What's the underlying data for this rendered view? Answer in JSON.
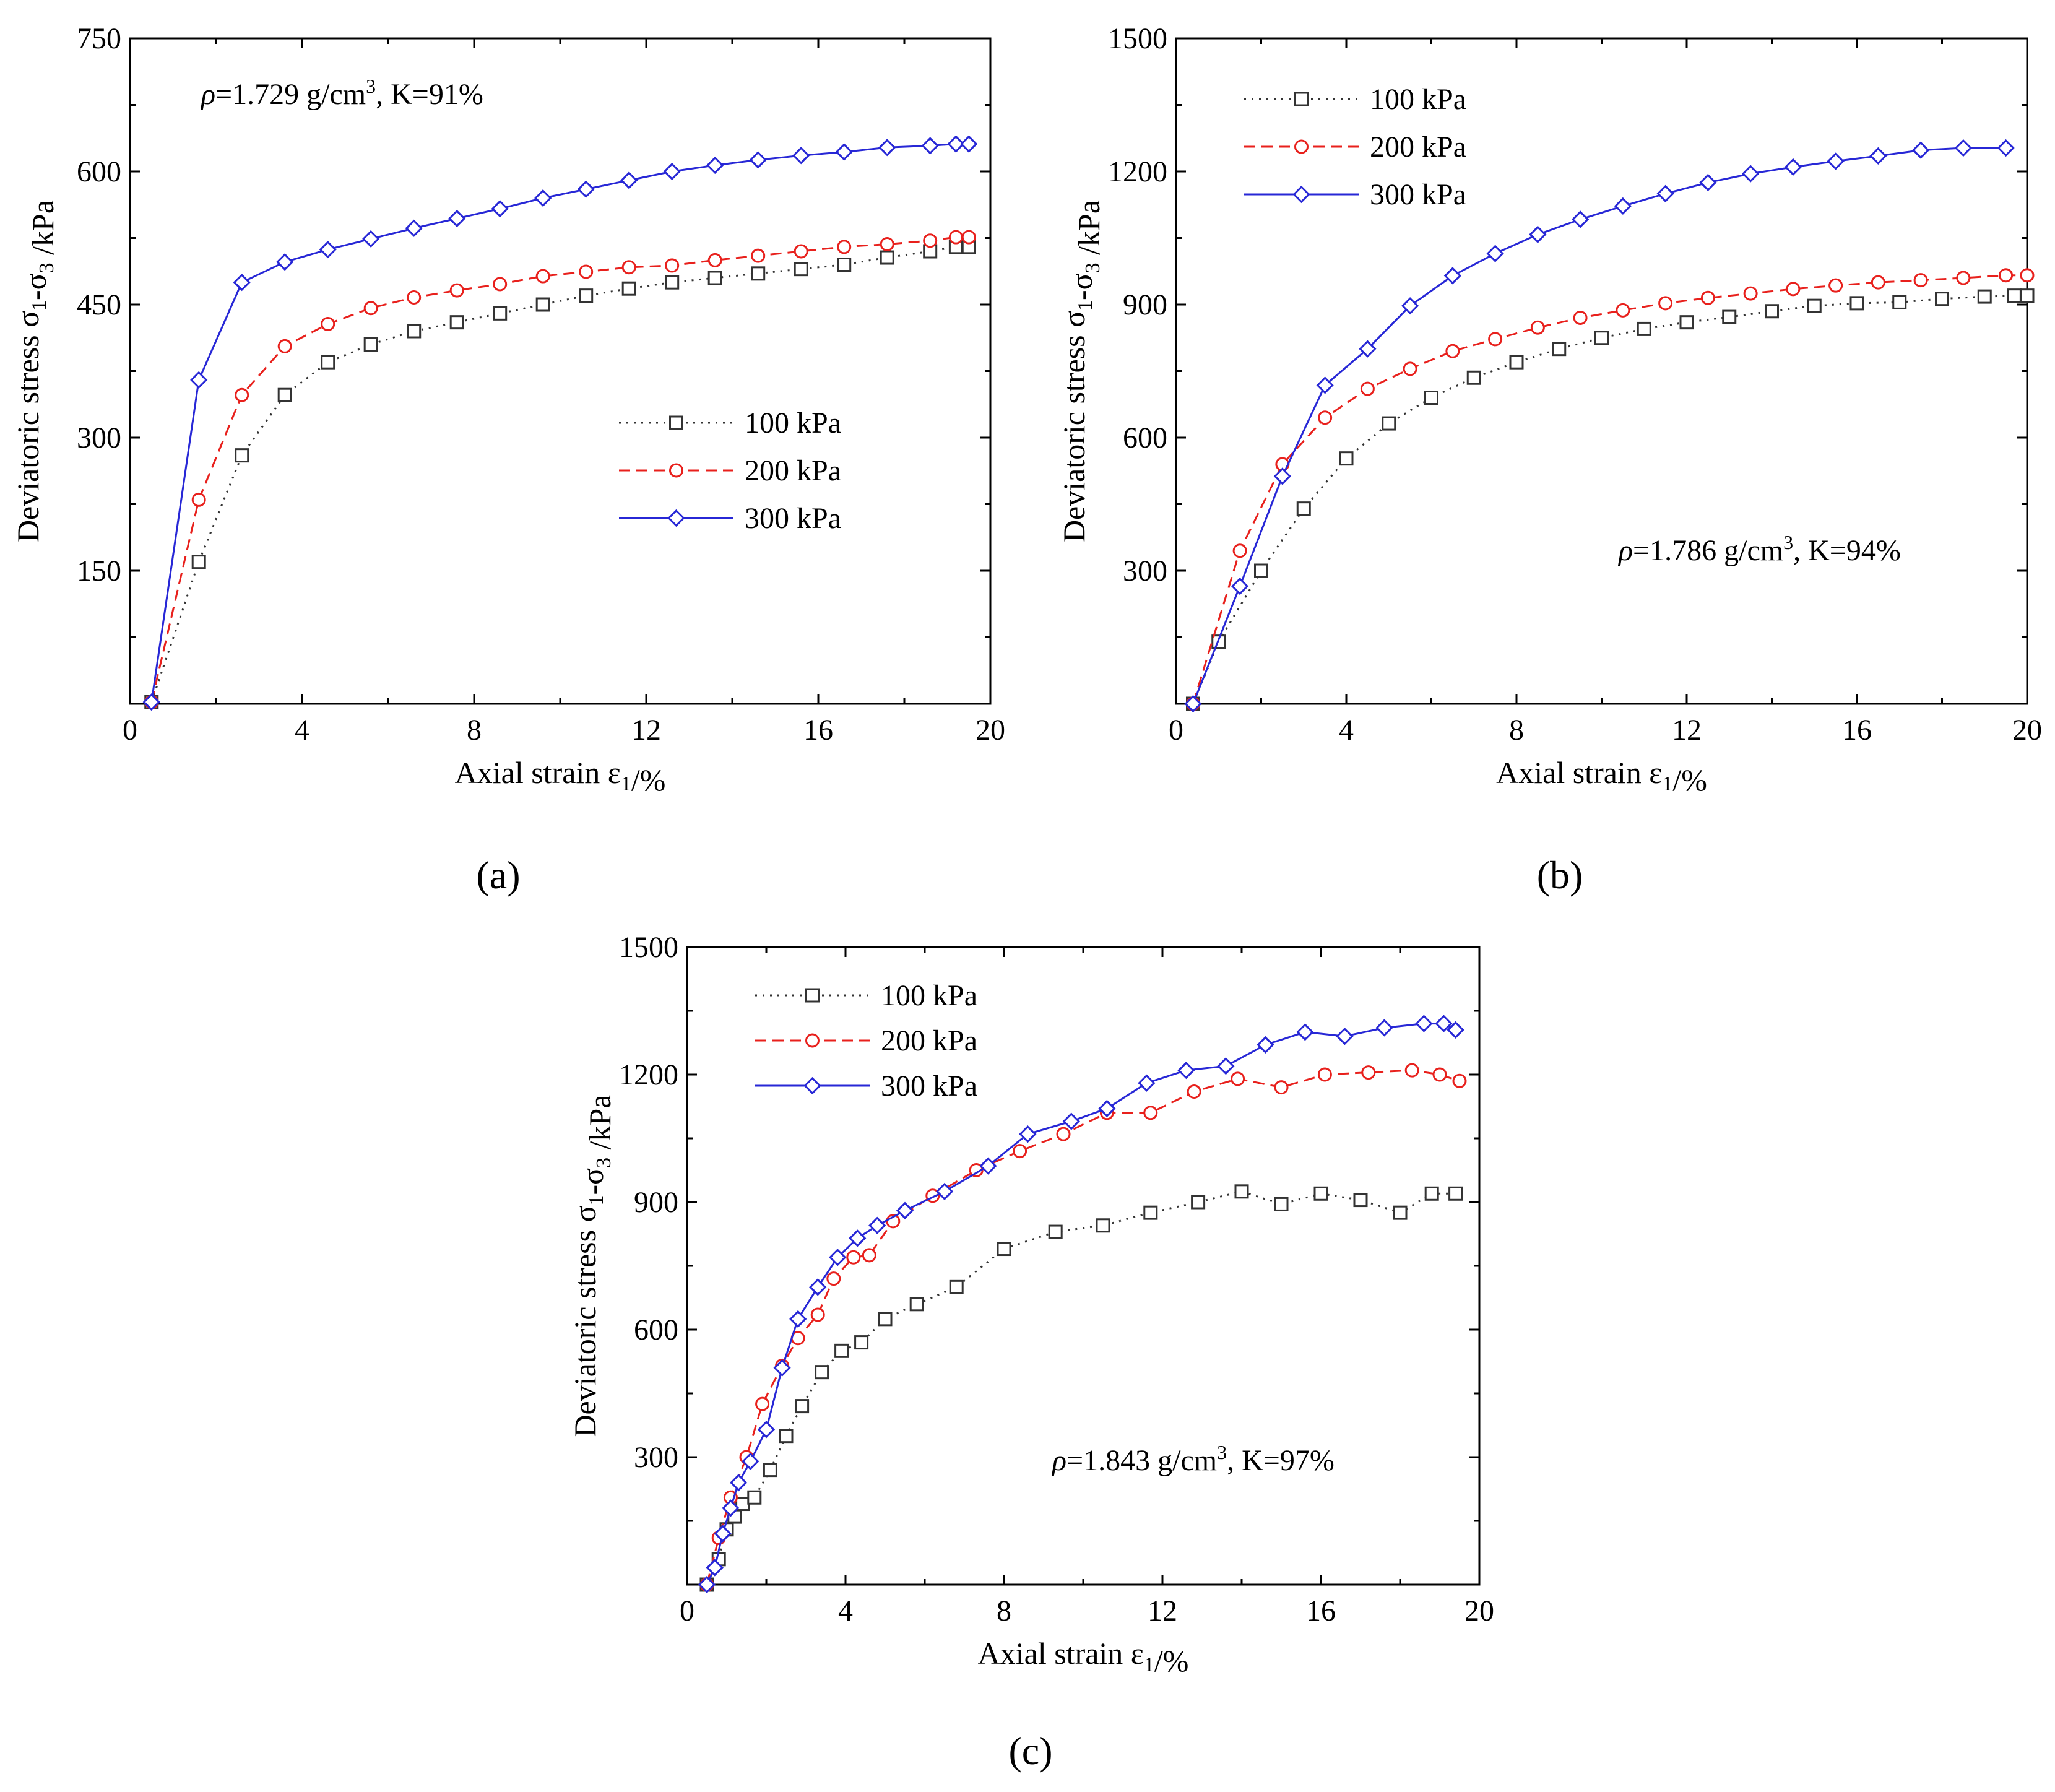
{
  "figure": {
    "labels": [
      "(a)",
      "(b)",
      "(c)"
    ]
  },
  "legend_labels": [
    "100 kPa",
    "200 kPa",
    "300 kPa"
  ],
  "colors": {
    "s100": "#333333",
    "s200": "#e8201c",
    "s300": "#2727d6"
  },
  "chart_data": [
    {
      "type": "line",
      "panel": "(a)",
      "xlabel": "Axial strain ε1/%",
      "ylabel": "Deviatoric stress σ1-σ3 /kPa",
      "xlim": [
        0,
        20
      ],
      "ylim": [
        0,
        750
      ],
      "xticks": [
        0,
        4,
        8,
        12,
        16,
        20
      ],
      "yticks": [
        150,
        300,
        450,
        600,
        750
      ],
      "annotation": {
        "rho_symbol": "ρ",
        "rho_value": "=1.729 g/cm",
        "cube": "3",
        "k_text": ", K=91%"
      },
      "legend_position": "center-right",
      "series": [
        {
          "name": "100 kPa",
          "marker": "square",
          "line": "dotted",
          "color": "#333333",
          "x": [
            0.5,
            1.6,
            2.6,
            3.6,
            4.6,
            5.6,
            6.6,
            7.6,
            8.6,
            9.6,
            10.6,
            11.6,
            12.6,
            13.6,
            14.6,
            15.6,
            16.6,
            17.6,
            18.6,
            19.2,
            19.5
          ],
          "y": [
            2,
            160,
            280,
            348,
            385,
            405,
            420,
            430,
            440,
            450,
            460,
            468,
            475,
            480,
            485,
            490,
            495,
            503,
            510,
            515,
            515
          ]
        },
        {
          "name": "200 kPa",
          "marker": "circle",
          "line": "dashed",
          "color": "#e8201c",
          "x": [
            0.5,
            1.6,
            2.6,
            3.6,
            4.6,
            5.6,
            6.6,
            7.6,
            8.6,
            9.6,
            10.6,
            11.6,
            12.6,
            13.6,
            14.6,
            15.6,
            16.6,
            17.6,
            18.6,
            19.2,
            19.5
          ],
          "y": [
            2,
            230,
            348,
            403,
            428,
            446,
            458,
            466,
            473,
            482,
            487,
            492,
            494,
            500,
            505,
            510,
            515,
            518,
            522,
            526,
            526
          ]
        },
        {
          "name": "300 kPa",
          "marker": "diamond",
          "line": "solid",
          "color": "#2727d6",
          "x": [
            0.5,
            1.6,
            2.6,
            3.6,
            4.6,
            5.6,
            6.6,
            7.6,
            8.6,
            9.6,
            10.6,
            11.6,
            12.6,
            13.6,
            14.6,
            15.6,
            16.6,
            17.6,
            18.6,
            19.2,
            19.5
          ],
          "y": [
            2,
            365,
            475,
            498,
            512,
            524,
            536,
            547,
            558,
            570,
            580,
            590,
            600,
            607,
            613,
            618,
            622,
            627,
            629,
            631,
            631
          ]
        }
      ]
    },
    {
      "type": "line",
      "panel": "(b)",
      "xlabel": "Axial strain ε1/%",
      "ylabel": "Deviatoric stress σ1-σ3 /kPa",
      "xlim": [
        0,
        20
      ],
      "ylim": [
        0,
        1500
      ],
      "xticks": [
        0,
        4,
        8,
        12,
        16,
        20
      ],
      "yticks": [
        300,
        600,
        900,
        1200,
        1500
      ],
      "annotation": {
        "rho_symbol": "ρ",
        "rho_value": "=1.786 g/cm",
        "cube": "3",
        "k_text": ", K=94%"
      },
      "legend_position": "top-left",
      "series": [
        {
          "name": "100 kPa",
          "marker": "square",
          "line": "dotted",
          "color": "#333333",
          "x": [
            0.4,
            1.0,
            2.0,
            3.0,
            4.0,
            5.0,
            6.0,
            7.0,
            8.0,
            9.0,
            10.0,
            11.0,
            12.0,
            13.0,
            14.0,
            15.0,
            16.0,
            17.0,
            18.0,
            19.0,
            19.7,
            20.0
          ],
          "y": [
            0,
            140,
            300,
            440,
            553,
            632,
            690,
            735,
            770,
            800,
            825,
            845,
            860,
            872,
            885,
            897,
            903,
            905,
            913,
            918,
            920,
            920
          ]
        },
        {
          "name": "200 kPa",
          "marker": "circle",
          "line": "dashed",
          "color": "#e8201c",
          "x": [
            0.4,
            1.5,
            2.5,
            3.5,
            4.5,
            5.5,
            6.5,
            7.5,
            8.5,
            9.5,
            10.5,
            11.5,
            12.5,
            13.5,
            14.5,
            15.5,
            16.5,
            17.5,
            18.5,
            19.5,
            20.0
          ],
          "y": [
            0,
            345,
            540,
            645,
            710,
            755,
            795,
            822,
            848,
            870,
            887,
            903,
            915,
            925,
            935,
            943,
            950,
            955,
            960,
            966,
            966
          ]
        },
        {
          "name": "300 kPa",
          "marker": "diamond",
          "line": "solid",
          "color": "#2727d6",
          "x": [
            0.4,
            1.5,
            2.5,
            3.5,
            4.5,
            5.5,
            6.5,
            7.5,
            8.5,
            9.5,
            10.5,
            11.5,
            12.5,
            13.5,
            14.5,
            15.5,
            16.5,
            17.5,
            18.5,
            19.5
          ],
          "y": [
            0,
            265,
            513,
            718,
            800,
            897,
            965,
            1015,
            1058,
            1092,
            1122,
            1150,
            1175,
            1195,
            1210,
            1223,
            1235,
            1248,
            1253,
            1253
          ]
        }
      ]
    },
    {
      "type": "line",
      "panel": "(c)",
      "xlabel": "Axial strain ε1/%",
      "ylabel": "Deviatoric stress σ1-σ3 /kPa",
      "xlim": [
        0,
        20
      ],
      "ylim": [
        0,
        1500
      ],
      "xticks": [
        0,
        4,
        8,
        12,
        16,
        20
      ],
      "yticks": [
        300,
        600,
        900,
        1200,
        1500
      ],
      "annotation": {
        "rho_symbol": "ρ",
        "rho_value": "=1.843 g/cm",
        "cube": "3",
        "k_text": ", K=97%"
      },
      "legend_position": "top-left",
      "series": [
        {
          "name": "100 kPa",
          "marker": "square",
          "line": "dotted",
          "color": "#333333",
          "x": [
            0.5,
            0.8,
            1.0,
            1.2,
            1.4,
            1.7,
            2.1,
            2.5,
            2.9,
            3.4,
            3.9,
            4.4,
            5.0,
            5.8,
            6.8,
            8.0,
            9.3,
            10.5,
            11.7,
            12.9,
            14.0,
            15.0,
            16.0,
            17.0,
            18.0,
            18.8,
            19.4
          ],
          "y": [
            0,
            60,
            130,
            160,
            190,
            205,
            270,
            350,
            420,
            500,
            550,
            570,
            625,
            660,
            700,
            790,
            830,
            845,
            875,
            900,
            925,
            895,
            920,
            905,
            875,
            920,
            920
          ]
        },
        {
          "name": "200 kPa",
          "marker": "circle",
          "line": "dashed",
          "color": "#e8201c",
          "x": [
            0.5,
            0.8,
            1.1,
            1.5,
            1.9,
            2.4,
            2.8,
            3.3,
            3.7,
            4.2,
            4.6,
            5.2,
            6.2,
            7.3,
            8.4,
            9.5,
            10.6,
            11.7,
            12.8,
            13.9,
            15.0,
            16.1,
            17.2,
            18.3,
            19.0,
            19.5
          ],
          "y": [
            0,
            110,
            205,
            300,
            425,
            515,
            580,
            635,
            720,
            770,
            775,
            855,
            915,
            975,
            1020,
            1060,
            1110,
            1110,
            1160,
            1190,
            1170,
            1200,
            1205,
            1210,
            1200,
            1185
          ]
        },
        {
          "name": "300 kPa",
          "marker": "diamond",
          "line": "solid",
          "color": "#2727d6",
          "x": [
            0.5,
            0.7,
            0.9,
            1.1,
            1.3,
            1.6,
            2.0,
            2.4,
            2.8,
            3.3,
            3.8,
            4.3,
            4.8,
            5.5,
            6.5,
            7.6,
            8.6,
            9.7,
            10.6,
            11.6,
            12.6,
            13.6,
            14.6,
            15.6,
            16.6,
            17.6,
            18.6,
            19.1,
            19.4
          ],
          "y": [
            0,
            40,
            120,
            180,
            240,
            290,
            365,
            510,
            625,
            700,
            770,
            815,
            845,
            880,
            925,
            985,
            1060,
            1090,
            1120,
            1180,
            1210,
            1220,
            1270,
            1300,
            1290,
            1310,
            1320,
            1320,
            1305
          ]
        }
      ]
    }
  ]
}
